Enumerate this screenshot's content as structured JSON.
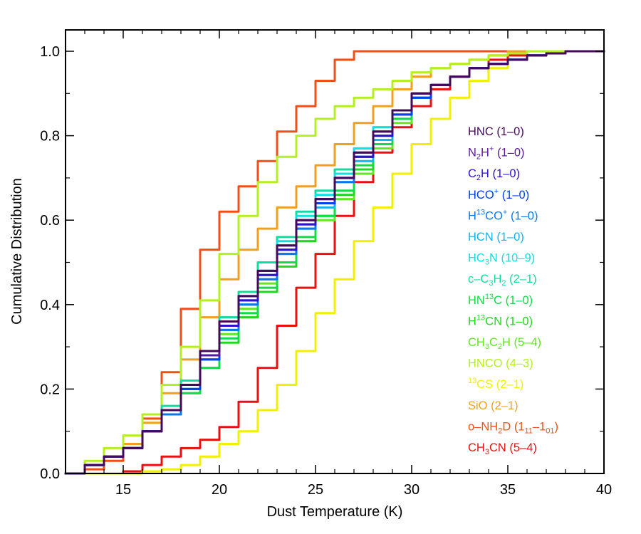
{
  "chart_data": {
    "type": "line",
    "xlabel": "Dust Temperature (K)",
    "ylabel": "Cumulative Distribution",
    "xlim": [
      12,
      40
    ],
    "ylim": [
      0,
      1.05
    ],
    "xticks": [
      15,
      20,
      25,
      30,
      35,
      40
    ],
    "xtick_labels": [
      "15",
      "20",
      "25",
      "30",
      "35",
      "40"
    ],
    "yticks": [
      0.0,
      0.2,
      0.4,
      0.6,
      0.8,
      1.0
    ],
    "ytick_labels": [
      "0.0",
      "0.2",
      "0.4",
      "0.6",
      "0.8",
      "1.0"
    ],
    "legend_position": "right",
    "series": [
      {
        "name": "HNC (1–0)",
        "label_parts": [
          {
            "t": "HNC (1–0)"
          }
        ],
        "color": "#440a5a",
        "x": [
          12,
          13,
          14,
          15,
          16,
          17,
          18,
          19,
          20,
          21,
          22,
          23,
          24,
          25,
          26,
          27,
          28,
          29,
          30,
          31,
          32,
          33,
          34,
          35,
          36,
          37,
          38,
          39,
          40
        ],
        "y": [
          0,
          0.02,
          0.04,
          0.06,
          0.1,
          0.15,
          0.21,
          0.29,
          0.36,
          0.42,
          0.48,
          0.54,
          0.6,
          0.65,
          0.7,
          0.76,
          0.81,
          0.86,
          0.9,
          0.92,
          0.94,
          0.96,
          0.97,
          0.98,
          0.99,
          0.995,
          1.0,
          1.0,
          1.0
        ]
      },
      {
        "name": "N2H+ (1–0)",
        "label_parts": [
          {
            "t": "N"
          },
          {
            "t": "2",
            "sub": true
          },
          {
            "t": "H"
          },
          {
            "t": "+",
            "sup": true
          },
          {
            "t": " (1–0)"
          }
        ],
        "color": "#5a1a9a",
        "x": [
          12,
          13,
          14,
          15,
          16,
          17,
          18,
          19,
          20,
          21,
          22,
          23,
          24,
          25,
          26,
          27,
          28,
          29,
          30,
          31,
          32,
          33,
          34,
          35,
          36,
          37,
          38,
          39,
          40
        ],
        "y": [
          0,
          0.02,
          0.04,
          0.06,
          0.1,
          0.15,
          0.21,
          0.28,
          0.36,
          0.42,
          0.48,
          0.54,
          0.6,
          0.65,
          0.7,
          0.76,
          0.81,
          0.86,
          0.9,
          0.92,
          0.94,
          0.96,
          0.97,
          0.98,
          0.99,
          0.995,
          1.0,
          1.0,
          1.0
        ]
      },
      {
        "name": "C2H (1–0)",
        "label_parts": [
          {
            "t": "C"
          },
          {
            "t": "2",
            "sub": true
          },
          {
            "t": "H (1–0)"
          }
        ],
        "color": "#3010cc",
        "x": [
          12,
          13,
          14,
          15,
          16,
          17,
          18,
          19,
          20,
          21,
          22,
          23,
          24,
          25,
          26,
          27,
          28,
          29,
          30,
          31,
          32,
          33,
          34,
          35,
          36,
          37,
          38,
          39,
          40
        ],
        "y": [
          0,
          0.02,
          0.04,
          0.06,
          0.1,
          0.15,
          0.21,
          0.28,
          0.35,
          0.41,
          0.47,
          0.53,
          0.59,
          0.65,
          0.7,
          0.75,
          0.8,
          0.86,
          0.9,
          0.92,
          0.94,
          0.96,
          0.97,
          0.98,
          0.99,
          0.995,
          1.0,
          1.0,
          1.0
        ]
      },
      {
        "name": "HCO+ (1–0)",
        "label_parts": [
          {
            "t": "HCO"
          },
          {
            "t": "+",
            "sup": true
          },
          {
            "t": " (1–0)"
          }
        ],
        "color": "#0040ee",
        "x": [
          12,
          13,
          14,
          15,
          16,
          17,
          18,
          19,
          20,
          21,
          22,
          23,
          24,
          25,
          26,
          27,
          28,
          29,
          30,
          31,
          32,
          33,
          34,
          35,
          36,
          37,
          38,
          39,
          40
        ],
        "y": [
          0,
          0.02,
          0.04,
          0.06,
          0.1,
          0.15,
          0.2,
          0.27,
          0.35,
          0.41,
          0.47,
          0.53,
          0.59,
          0.64,
          0.7,
          0.75,
          0.8,
          0.85,
          0.89,
          0.92,
          0.94,
          0.96,
          0.97,
          0.98,
          0.99,
          0.995,
          1.0,
          1.0,
          1.0
        ]
      },
      {
        "name": "H13CO+ (1–0)",
        "label_parts": [
          {
            "t": "H"
          },
          {
            "t": "13",
            "sup": true
          },
          {
            "t": "CO"
          },
          {
            "t": "+",
            "sup": true
          },
          {
            "t": " (1–0)"
          }
        ],
        "color": "#0a78e8",
        "x": [
          12,
          13,
          14,
          15,
          16,
          17,
          18,
          19,
          20,
          21,
          22,
          23,
          24,
          25,
          26,
          27,
          28,
          29,
          30,
          31,
          32,
          33,
          34,
          35,
          36,
          37,
          38,
          39,
          40
        ],
        "y": [
          0,
          0.02,
          0.04,
          0.06,
          0.1,
          0.14,
          0.2,
          0.27,
          0.34,
          0.4,
          0.46,
          0.52,
          0.58,
          0.64,
          0.69,
          0.75,
          0.8,
          0.85,
          0.89,
          0.92,
          0.94,
          0.96,
          0.97,
          0.98,
          0.99,
          0.995,
          1.0,
          1.0,
          1.0
        ]
      },
      {
        "name": "HCN (1–0)",
        "label_parts": [
          {
            "t": "HCN (1–0)"
          }
        ],
        "color": "#12b4ee",
        "x": [
          12,
          13,
          14,
          15,
          16,
          17,
          18,
          19,
          20,
          21,
          22,
          23,
          24,
          25,
          26,
          27,
          28,
          29,
          30,
          31,
          32,
          33,
          34,
          35,
          36,
          37,
          38,
          39,
          40
        ],
        "y": [
          0,
          0.02,
          0.04,
          0.06,
          0.1,
          0.14,
          0.2,
          0.27,
          0.34,
          0.4,
          0.46,
          0.52,
          0.58,
          0.63,
          0.69,
          0.74,
          0.79,
          0.85,
          0.89,
          0.92,
          0.94,
          0.96,
          0.97,
          0.98,
          0.99,
          0.995,
          1.0,
          1.0,
          1.0
        ]
      },
      {
        "name": "HC3N (10–9)",
        "label_parts": [
          {
            "t": "HC"
          },
          {
            "t": "3",
            "sub": true
          },
          {
            "t": "N (10–9)"
          }
        ],
        "color": "#10e0e0",
        "x": [
          12,
          13,
          14,
          15,
          16,
          17,
          18,
          19,
          20,
          21,
          22,
          23,
          24,
          25,
          26,
          27,
          28,
          29,
          30,
          31,
          32,
          33,
          34,
          35,
          36,
          37,
          38,
          39,
          40
        ],
        "y": [
          0,
          0.02,
          0.04,
          0.06,
          0.1,
          0.15,
          0.21,
          0.28,
          0.36,
          0.42,
          0.48,
          0.55,
          0.61,
          0.66,
          0.71,
          0.77,
          0.82,
          0.86,
          0.9,
          0.92,
          0.94,
          0.96,
          0.97,
          0.98,
          0.99,
          0.995,
          1.0,
          1.0,
          1.0
        ]
      },
      {
        "name": "c–C3H2 (2–1)",
        "label_parts": [
          {
            "t": "c–C"
          },
          {
            "t": "3",
            "sub": true
          },
          {
            "t": "H"
          },
          {
            "t": "2",
            "sub": true
          },
          {
            "t": " (2–1)"
          }
        ],
        "color": "#10dca0",
        "x": [
          12,
          13,
          14,
          15,
          16,
          17,
          18,
          19,
          20,
          21,
          22,
          23,
          24,
          25,
          26,
          27,
          28,
          29,
          30,
          31,
          32,
          33,
          34,
          35,
          36,
          37,
          38,
          39,
          40
        ],
        "y": [
          0,
          0.02,
          0.04,
          0.06,
          0.1,
          0.16,
          0.22,
          0.29,
          0.37,
          0.43,
          0.5,
          0.56,
          0.62,
          0.67,
          0.72,
          0.77,
          0.82,
          0.86,
          0.9,
          0.92,
          0.94,
          0.96,
          0.97,
          0.98,
          0.99,
          0.995,
          1.0,
          1.0,
          1.0
        ]
      },
      {
        "name": "HN13C (1–0)",
        "label_parts": [
          {
            "t": "HN"
          },
          {
            "t": "13",
            "sup": true
          },
          {
            "t": "C (1–0)"
          }
        ],
        "color": "#10dc4a",
        "x": [
          12,
          13,
          14,
          15,
          16,
          17,
          18,
          19,
          20,
          21,
          22,
          23,
          24,
          25,
          26,
          27,
          28,
          29,
          30,
          31,
          32,
          33,
          34,
          35,
          36,
          37,
          38,
          39,
          40
        ],
        "y": [
          0,
          0.02,
          0.04,
          0.06,
          0.1,
          0.14,
          0.19,
          0.25,
          0.32,
          0.38,
          0.44,
          0.5,
          0.56,
          0.61,
          0.67,
          0.73,
          0.78,
          0.84,
          0.89,
          0.92,
          0.94,
          0.96,
          0.97,
          0.98,
          0.99,
          0.995,
          1.0,
          1.0,
          1.0
        ]
      },
      {
        "name": "H13CN (1–0)",
        "label_parts": [
          {
            "t": "H"
          },
          {
            "t": "13",
            "sup": true
          },
          {
            "t": "CN (1–0)"
          }
        ],
        "color": "#20d820",
        "x": [
          12,
          13,
          14,
          15,
          16,
          17,
          18,
          19,
          20,
          21,
          22,
          23,
          24,
          25,
          26,
          27,
          28,
          29,
          30,
          31,
          32,
          33,
          34,
          35,
          36,
          37,
          38,
          39,
          40
        ],
        "y": [
          0,
          0.02,
          0.04,
          0.06,
          0.1,
          0.14,
          0.19,
          0.25,
          0.31,
          0.37,
          0.43,
          0.49,
          0.55,
          0.61,
          0.66,
          0.72,
          0.78,
          0.84,
          0.89,
          0.92,
          0.94,
          0.96,
          0.97,
          0.98,
          0.99,
          0.995,
          1.0,
          1.0,
          1.0
        ]
      },
      {
        "name": "CH3C2H (5–4)",
        "label_parts": [
          {
            "t": "CH"
          },
          {
            "t": "3",
            "sub": true
          },
          {
            "t": "C"
          },
          {
            "t": "2",
            "sub": true
          },
          {
            "t": "H (5–4)"
          }
        ],
        "color": "#60e820",
        "x": [
          12,
          13,
          14,
          15,
          16,
          17,
          18,
          19,
          20,
          21,
          22,
          23,
          24,
          25,
          26,
          27,
          28,
          29,
          30,
          31,
          32,
          33,
          34,
          35,
          36,
          37,
          38,
          39,
          40
        ],
        "y": [
          0,
          0.02,
          0.04,
          0.06,
          0.1,
          0.15,
          0.2,
          0.27,
          0.33,
          0.39,
          0.45,
          0.5,
          0.55,
          0.6,
          0.65,
          0.71,
          0.77,
          0.83,
          0.89,
          0.92,
          0.94,
          0.96,
          0.97,
          0.98,
          0.99,
          0.995,
          1.0,
          1.0,
          1.0
        ]
      },
      {
        "name": "HNCO (4–3)",
        "label_parts": [
          {
            "t": "HNCO (4–3)"
          }
        ],
        "color": "#b4f020",
        "x": [
          12,
          13,
          14,
          15,
          16,
          17,
          18,
          19,
          20,
          21,
          22,
          23,
          24,
          25,
          26,
          27,
          28,
          29,
          30,
          31,
          32,
          33,
          34,
          35,
          36,
          37,
          38,
          39,
          40
        ],
        "y": [
          0,
          0.03,
          0.06,
          0.09,
          0.14,
          0.21,
          0.3,
          0.41,
          0.52,
          0.61,
          0.69,
          0.75,
          0.8,
          0.84,
          0.87,
          0.89,
          0.91,
          0.93,
          0.95,
          0.96,
          0.97,
          0.98,
          0.99,
          0.995,
          1.0,
          1.0,
          1.0,
          1.0,
          1.0
        ]
      },
      {
        "name": "13CS (2–1)",
        "label_parts": [
          {
            "t": "13",
            "sup": true
          },
          {
            "t": "CS (2–1)"
          }
        ],
        "color": "#f0f000",
        "x": [
          12,
          13,
          14,
          15,
          16,
          17,
          18,
          19,
          20,
          21,
          22,
          23,
          24,
          25,
          26,
          27,
          28,
          29,
          30,
          31,
          32,
          33,
          34,
          35,
          36,
          37,
          38,
          39,
          40
        ],
        "y": [
          0,
          0,
          0,
          0,
          0.005,
          0.01,
          0.02,
          0.04,
          0.07,
          0.1,
          0.15,
          0.21,
          0.29,
          0.38,
          0.46,
          0.55,
          0.63,
          0.71,
          0.78,
          0.84,
          0.89,
          0.93,
          0.96,
          0.98,
          0.99,
          0.995,
          1.0,
          1.0,
          1.0
        ]
      },
      {
        "name": "SiO (2–1)",
        "label_parts": [
          {
            "t": "SiO (2–1)"
          }
        ],
        "color": "#f0a020",
        "x": [
          12,
          13,
          14,
          15,
          16,
          17,
          18,
          19,
          20,
          21,
          22,
          23,
          24,
          25,
          26,
          27,
          28,
          29,
          30,
          31,
          32,
          33,
          34,
          35,
          36,
          37,
          38,
          39,
          40
        ],
        "y": [
          0,
          0.02,
          0.04,
          0.07,
          0.12,
          0.19,
          0.27,
          0.37,
          0.46,
          0.53,
          0.58,
          0.63,
          0.68,
          0.73,
          0.78,
          0.83,
          0.87,
          0.91,
          0.94,
          0.96,
          0.97,
          0.98,
          0.99,
          1.0,
          1.0,
          1.0,
          1.0,
          1.0,
          1.0
        ]
      },
      {
        "name": "o–NH2D (111–101)",
        "label_parts": [
          {
            "t": "o–NH"
          },
          {
            "t": "2",
            "sub": true
          },
          {
            "t": "D (1"
          },
          {
            "t": "11",
            "sub": true
          },
          {
            "t": "–1"
          },
          {
            "t": "01",
            "sub": true
          },
          {
            "t": ")"
          }
        ],
        "color": "#f05018",
        "x": [
          12,
          13,
          14,
          15,
          16,
          17,
          18,
          19,
          20,
          21,
          22,
          23,
          24,
          25,
          26,
          27,
          28,
          29,
          30,
          31,
          32,
          33,
          34,
          35,
          36,
          37,
          38,
          39,
          40
        ],
        "y": [
          0,
          0.01,
          0.03,
          0.07,
          0.13,
          0.24,
          0.39,
          0.53,
          0.62,
          0.68,
          0.74,
          0.81,
          0.87,
          0.93,
          0.98,
          1.0,
          1.0,
          1.0,
          1.0,
          1.0,
          1.0,
          1.0,
          1.0,
          1.0,
          1.0,
          1.0,
          1.0,
          1.0,
          1.0
        ]
      },
      {
        "name": "CH3CN (5–4)",
        "label_parts": [
          {
            "t": "CH"
          },
          {
            "t": "3",
            "sub": true
          },
          {
            "t": "CN (5–4)"
          }
        ],
        "color": "#e81010",
        "x": [
          12,
          13,
          14,
          15,
          16,
          17,
          18,
          19,
          20,
          21,
          22,
          23,
          24,
          25,
          26,
          27,
          28,
          29,
          30,
          31,
          32,
          33,
          34,
          35,
          36,
          37,
          38,
          39,
          40
        ],
        "y": [
          0,
          0,
          0,
          0.005,
          0.02,
          0.04,
          0.06,
          0.08,
          0.11,
          0.17,
          0.25,
          0.35,
          0.44,
          0.52,
          0.61,
          0.69,
          0.76,
          0.82,
          0.87,
          0.91,
          0.94,
          0.96,
          0.98,
          0.99,
          1.0,
          1.0,
          1.0,
          1.0,
          1.0
        ]
      }
    ]
  }
}
